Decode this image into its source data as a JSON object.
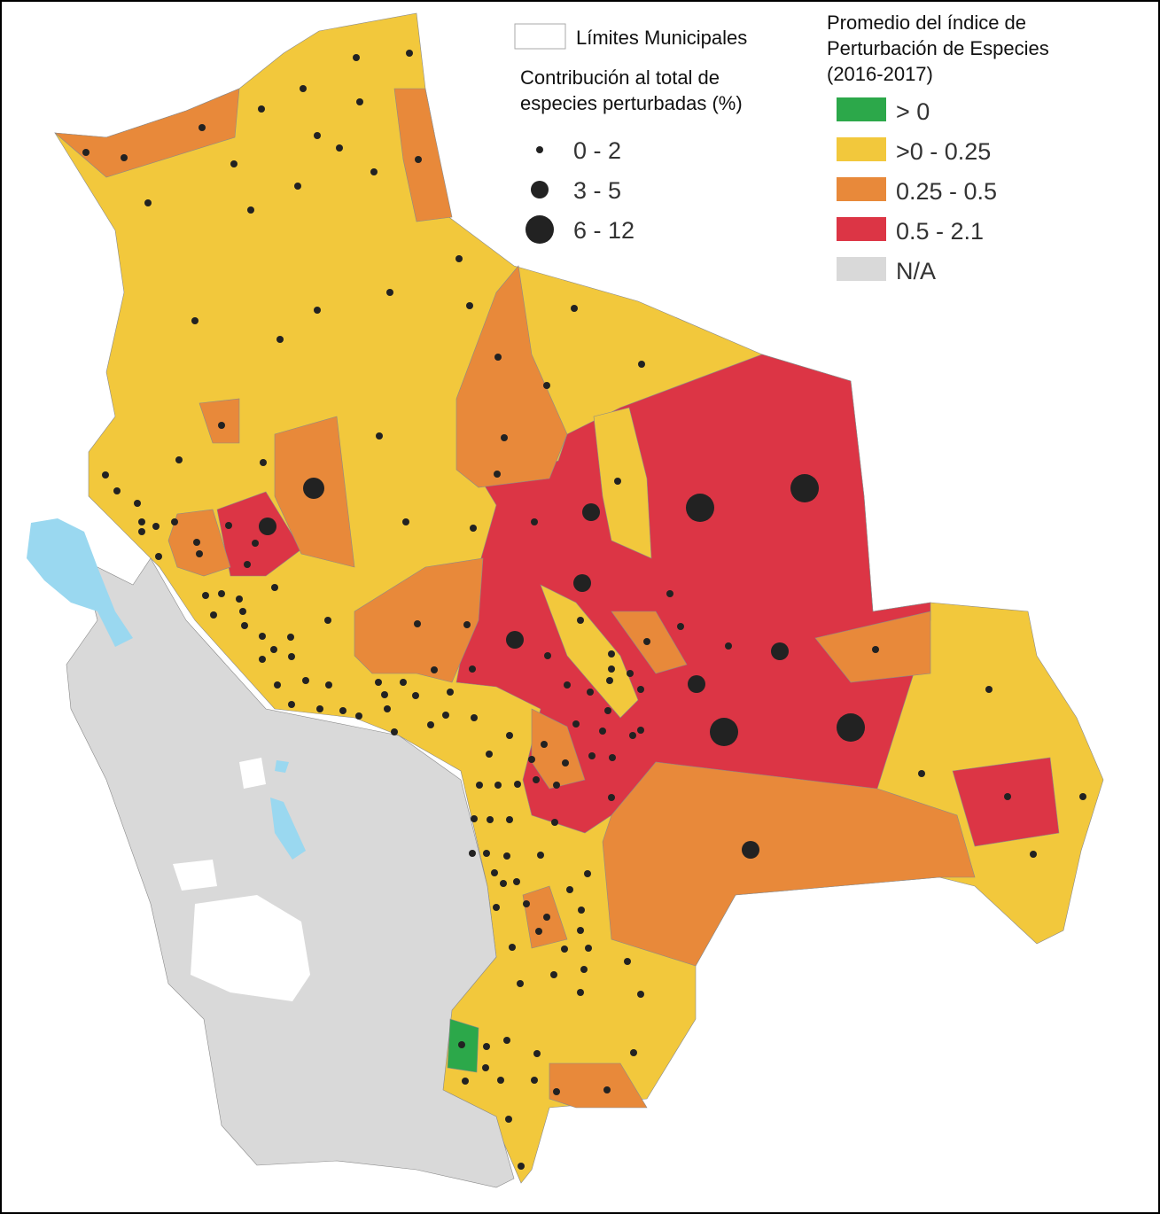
{
  "map": {
    "municipal_boundaries_label": "Límites Municipales",
    "size_legend": {
      "title_lines": [
        "Contribución al total de",
        "especies perturbadas (%)"
      ],
      "items": [
        "0 - 2",
        "3 - 5",
        "6 - 12"
      ]
    },
    "color_legend": {
      "title_lines": [
        "Promedio del índice de",
        "Perturbación de Especies",
        "(2016-2017)"
      ],
      "items": [
        {
          "label": "> 0",
          "color": "#2ca84a"
        },
        {
          "label": ">0 - 0.25",
          "color": "#f2c83c"
        },
        {
          "label": "0.25 - 0.5",
          "color": "#e8893a"
        },
        {
          "label": "0.5 - 2.1",
          "color": "#dc3545"
        },
        {
          "label": "N/A",
          "color": "#d9d9d9"
        }
      ]
    }
  }
}
